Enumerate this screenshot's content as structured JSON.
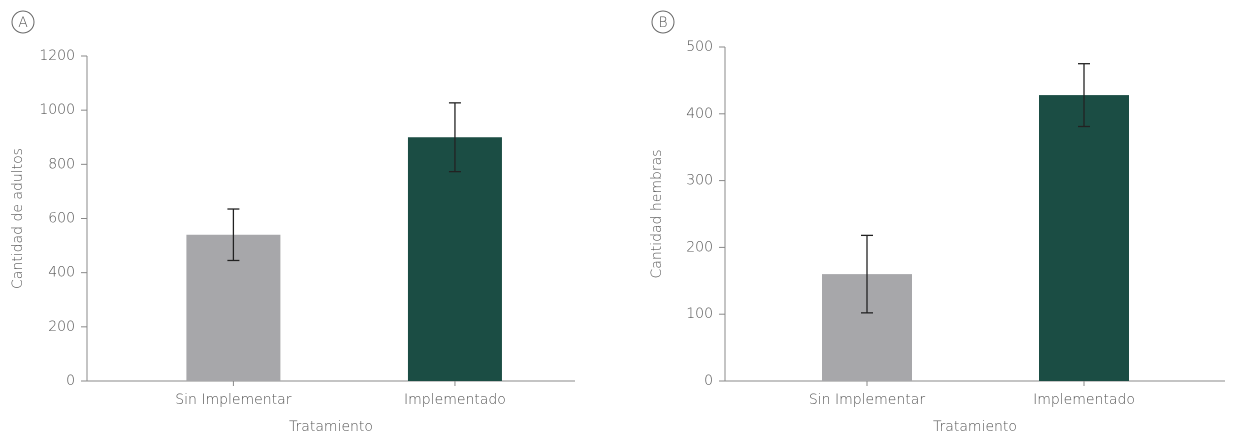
{
  "chart_data": [
    {
      "type": "bar",
      "panel_label": "A",
      "x_label": "Tratamiento",
      "y_label": "Cantidad de adultos",
      "categories": [
        "Sin Implementar",
        "Implementado"
      ],
      "values": [
        540,
        900
      ],
      "errors": [
        95,
        127
      ],
      "colors": [
        "#a7a7aa",
        "#1b4d44"
      ],
      "ylim": [
        0,
        1200
      ],
      "yticks": [
        0,
        200,
        400,
        600,
        800,
        1000,
        1200
      ]
    },
    {
      "type": "bar",
      "panel_label": "B",
      "x_label": "Tratamiento",
      "y_label": "Cantidad hembras",
      "categories": [
        "Sin Implementar",
        "Implementado"
      ],
      "values": [
        160,
        428
      ],
      "errors": [
        58,
        47
      ],
      "colors": [
        "#a7a7aa",
        "#1b4d44"
      ],
      "ylim": [
        0,
        500
      ],
      "yticks": [
        0,
        100,
        200,
        300,
        400,
        500
      ]
    }
  ]
}
